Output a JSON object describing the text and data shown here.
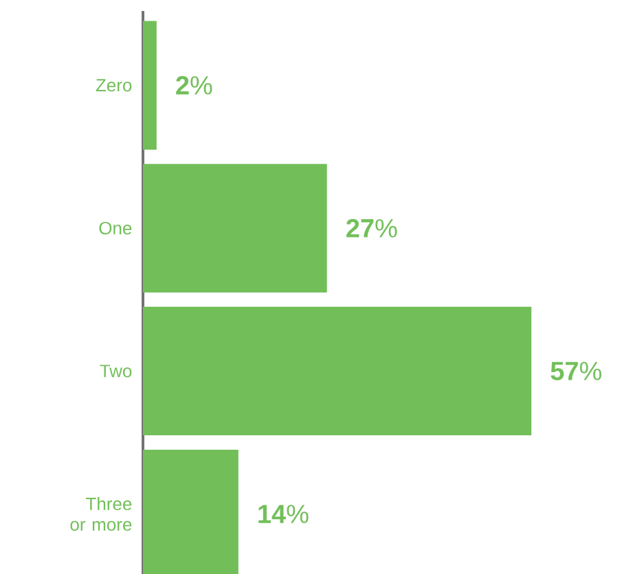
{
  "chart_data": {
    "type": "bar",
    "orientation": "horizontal",
    "categories": [
      "Zero",
      "One",
      "Two",
      "Three or more"
    ],
    "values": [
      2,
      27,
      57,
      14
    ],
    "color": "#72bf5a",
    "value_labels": [
      "**2**%",
      "**27**%",
      "**57**%",
      "**14**%"
    ]
  }
}
